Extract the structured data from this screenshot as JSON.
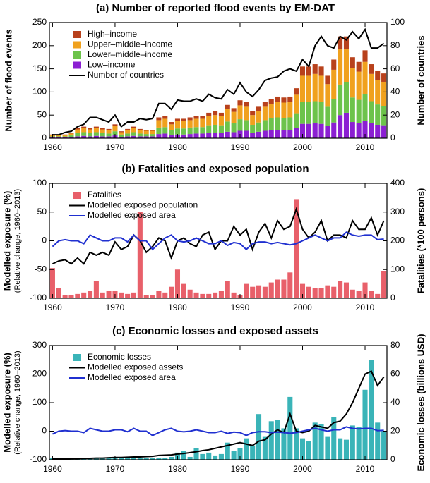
{
  "chart_data": [
    {
      "type": "bar",
      "title": "(a) Number of reported flood events by EM-DAT",
      "y_label": "Number of flood events",
      "y2_label": "Number of countries",
      "x": [
        1960,
        1961,
        1962,
        1963,
        1964,
        1965,
        1966,
        1967,
        1968,
        1969,
        1970,
        1971,
        1972,
        1973,
        1974,
        1975,
        1976,
        1977,
        1978,
        1979,
        1980,
        1981,
        1982,
        1983,
        1984,
        1985,
        1986,
        1987,
        1988,
        1989,
        1990,
        1991,
        1992,
        1993,
        1994,
        1995,
        1996,
        1997,
        1998,
        1999,
        2000,
        2001,
        2002,
        2003,
        2004,
        2005,
        2006,
        2007,
        2008,
        2009,
        2010,
        2011,
        2012,
        2013
      ],
      "xlim": [
        1959.5,
        2013.5
      ],
      "xticks": [
        1960,
        1970,
        1980,
        1990,
        2000,
        2010
      ],
      "ylim": [
        0,
        250
      ],
      "yticks": [
        0,
        50,
        100,
        150,
        200,
        250
      ],
      "y2lim": [
        0,
        100
      ],
      "y2ticks": [
        0,
        20,
        40,
        60,
        80,
        100
      ],
      "series": [
        {
          "name": "High–income",
          "type": "bar",
          "color": "#b8411c",
          "values": [
            1,
            1,
            1,
            2,
            3,
            3,
            3,
            3,
            3,
            3,
            4,
            2,
            3,
            3,
            3,
            2,
            2,
            6,
            6,
            5,
            5,
            5,
            6,
            6,
            6,
            7,
            8,
            7,
            9,
            8,
            11,
            10,
            8,
            9,
            10,
            11,
            12,
            11,
            12,
            14,
            20,
            20,
            21,
            20,
            18,
            22,
            28,
            28,
            23,
            21,
            25,
            21,
            19,
            18
          ]
        },
        {
          "name": "Upper–middle–income",
          "type": "bar",
          "color": "#f0a11e",
          "values": [
            3,
            3,
            3,
            4,
            8,
            9,
            8,
            9,
            8,
            7,
            11,
            5,
            7,
            9,
            7,
            7,
            7,
            16,
            18,
            12,
            16,
            16,
            16,
            18,
            18,
            20,
            21,
            20,
            27,
            24,
            30,
            29,
            21,
            25,
            29,
            31,
            33,
            33,
            33,
            40,
            57,
            57,
            59,
            57,
            49,
            63,
            76,
            71,
            64,
            61,
            70,
            59,
            53,
            52
          ]
        },
        {
          "name": "Lower–middle–income",
          "type": "bar",
          "color": "#6dc34b",
          "values": [
            2,
            2,
            2,
            4,
            7,
            8,
            7,
            8,
            7,
            6,
            9,
            5,
            6,
            8,
            6,
            5,
            5,
            14,
            14,
            11,
            13,
            13,
            14,
            14,
            14,
            17,
            17,
            17,
            22,
            20,
            25,
            23,
            17,
            20,
            23,
            26,
            27,
            26,
            27,
            32,
            47,
            47,
            48,
            47,
            41,
            51,
            66,
            66,
            53,
            50,
            57,
            48,
            44,
            42
          ]
        },
        {
          "name": "Low–income",
          "type": "bar",
          "color": "#8b1fd2",
          "values": [
            2,
            2,
            2,
            2,
            4,
            5,
            4,
            5,
            4,
            4,
            6,
            3,
            4,
            5,
            4,
            4,
            4,
            9,
            10,
            7,
            8,
            8,
            9,
            10,
            10,
            11,
            12,
            11,
            14,
            13,
            16,
            16,
            12,
            14,
            16,
            17,
            18,
            18,
            18,
            22,
            31,
            31,
            32,
            31,
            27,
            34,
            50,
            55,
            35,
            33,
            38,
            32,
            29,
            28
          ]
        },
        {
          "name": "Number of countries",
          "type": "line",
          "axis": "y2",
          "color": "#000000",
          "values": [
            3,
            3,
            5,
            6,
            10,
            12,
            18,
            18,
            16,
            14,
            20,
            10,
            14,
            14,
            17,
            16,
            17,
            30,
            30,
            25,
            33,
            32,
            32,
            34,
            32,
            38,
            35,
            34,
            42,
            38,
            48,
            40,
            36,
            42,
            50,
            52,
            53,
            58,
            60,
            58,
            68,
            62,
            80,
            88,
            80,
            78,
            88,
            85,
            92,
            86,
            94,
            78,
            78,
            82
          ]
        }
      ]
    },
    {
      "type": "bar",
      "title": "(b) Fatalities and exposed population",
      "y_label": "Modelled exposure (%)",
      "y_note": "(Relative change, 1960–2013)",
      "y2_label": "Fatalities (*100 persons)",
      "x": [
        1960,
        1961,
        1962,
        1963,
        1964,
        1965,
        1966,
        1967,
        1968,
        1969,
        1970,
        1971,
        1972,
        1973,
        1974,
        1975,
        1976,
        1977,
        1978,
        1979,
        1980,
        1981,
        1982,
        1983,
        1984,
        1985,
        1986,
        1987,
        1988,
        1989,
        1990,
        1991,
        1992,
        1993,
        1994,
        1995,
        1996,
        1997,
        1998,
        1999,
        2000,
        2001,
        2002,
        2003,
        2004,
        2005,
        2006,
        2007,
        2008,
        2009,
        2010,
        2011,
        2012,
        2013
      ],
      "xlim": [
        1959.5,
        2013.5
      ],
      "xticks": [
        1960,
        1970,
        1980,
        1990,
        2000,
        2010
      ],
      "ylim": [
        -100,
        100
      ],
      "yticks": [
        -100,
        -50,
        0,
        50,
        100
      ],
      "y2lim": [
        0,
        400
      ],
      "y2ticks": [
        0,
        100,
        200,
        300,
        400
      ],
      "series": [
        {
          "name": "Fatalities",
          "type": "bar",
          "axis": "y2",
          "color": "#e8606a",
          "values": [
            105,
            35,
            10,
            10,
            15,
            20,
            25,
            60,
            20,
            25,
            25,
            20,
            15,
            20,
            300,
            10,
            10,
            25,
            20,
            40,
            100,
            50,
            30,
            20,
            15,
            15,
            20,
            25,
            60,
            20,
            10,
            50,
            40,
            45,
            40,
            55,
            65,
            65,
            90,
            345,
            50,
            40,
            35,
            35,
            45,
            40,
            60,
            55,
            30,
            25,
            55,
            25,
            15,
            95
          ]
        },
        {
          "name": "Modelled exposed population",
          "type": "line",
          "color": "#000000",
          "values": [
            -40,
            -35,
            -33,
            -40,
            -30,
            -40,
            -20,
            -25,
            -20,
            -25,
            -2,
            -15,
            -10,
            10,
            0,
            -20,
            -10,
            5,
            0,
            -30,
            0,
            5,
            -5,
            -10,
            10,
            15,
            -15,
            0,
            0,
            25,
            10,
            20,
            -15,
            15,
            30,
            5,
            35,
            20,
            25,
            55,
            20,
            5,
            15,
            35,
            0,
            10,
            10,
            5,
            35,
            20,
            20,
            40,
            10,
            35
          ]
        },
        {
          "name": "Modelled exposed area",
          "type": "line",
          "color": "#2030d0",
          "values": [
            -10,
            0,
            2,
            0,
            0,
            -5,
            10,
            5,
            0,
            0,
            5,
            5,
            -2,
            10,
            0,
            0,
            -15,
            -5,
            5,
            10,
            0,
            -2,
            0,
            5,
            0,
            -5,
            -5,
            0,
            -8,
            -3,
            -5,
            -15,
            -5,
            -2,
            -2,
            -5,
            -3,
            -5,
            -7,
            -5,
            0,
            5,
            10,
            5,
            0,
            5,
            5,
            15,
            10,
            8,
            10,
            10,
            2,
            3
          ]
        }
      ]
    },
    {
      "type": "bar",
      "title": "(c) Economic losses and exposed assets",
      "y_label": "Modelled exposure (%)",
      "y_note": "(Relative change, 1960–2013)",
      "y2_label": "Economic losses (billions USD)",
      "x": [
        1960,
        1961,
        1962,
        1963,
        1964,
        1965,
        1966,
        1967,
        1968,
        1969,
        1970,
        1971,
        1972,
        1973,
        1974,
        1975,
        1976,
        1977,
        1978,
        1979,
        1980,
        1981,
        1982,
        1983,
        1984,
        1985,
        1986,
        1987,
        1988,
        1989,
        1990,
        1991,
        1992,
        1993,
        1994,
        1995,
        1996,
        1997,
        1998,
        1999,
        2000,
        2001,
        2002,
        2003,
        2004,
        2005,
        2006,
        2007,
        2008,
        2009,
        2010,
        2011,
        2012,
        2013
      ],
      "xlim": [
        1959.5,
        2013.5
      ],
      "xticks": [
        1960,
        1970,
        1980,
        1990,
        2000,
        2010
      ],
      "ylim": [
        -100,
        300
      ],
      "yticks": [
        -100,
        0,
        100,
        200,
        300
      ],
      "y2lim": [
        0,
        80
      ],
      "y2ticks": [
        0,
        20,
        40,
        60,
        80
      ],
      "series": [
        {
          "name": "Economic losses",
          "type": "bar",
          "axis": "y2",
          "color": "#3ab4b8",
          "values": [
            1,
            1,
            1,
            1,
            1,
            1,
            1,
            1,
            1,
            1,
            1,
            1,
            1,
            2,
            1,
            1,
            1,
            1,
            1,
            2,
            5,
            6,
            2,
            8,
            4,
            5,
            3,
            4,
            12,
            6,
            8,
            15,
            10,
            32,
            16,
            27,
            28,
            22,
            44,
            22,
            15,
            13,
            26,
            25,
            16,
            30,
            15,
            14,
            24,
            23,
            49,
            70,
            26,
            20
          ]
        },
        {
          "name": "Modelled exposed assets",
          "type": "line",
          "color": "#000000",
          "values": [
            -97,
            -97,
            -97,
            -96,
            -96,
            -95,
            -95,
            -94,
            -94,
            -93,
            -92,
            -92,
            -91,
            -90,
            -90,
            -89,
            -88,
            -85,
            -84,
            -83,
            -80,
            -78,
            -75,
            -72,
            -68,
            -65,
            -60,
            -55,
            -50,
            -45,
            -40,
            -45,
            -50,
            -35,
            -30,
            -10,
            5,
            -5,
            60,
            0,
            -5,
            0,
            20,
            15,
            10,
            30,
            35,
            60,
            100,
            150,
            200,
            210,
            160,
            190
          ]
        },
        {
          "name": "Modelled exposed area",
          "type": "line",
          "color": "#2030d0",
          "values": [
            -10,
            0,
            2,
            0,
            0,
            -5,
            10,
            5,
            0,
            0,
            5,
            5,
            -2,
            10,
            0,
            0,
            -15,
            -5,
            5,
            10,
            0,
            -2,
            0,
            5,
            0,
            -5,
            -5,
            0,
            -8,
            -3,
            -5,
            -15,
            -5,
            -2,
            -2,
            -5,
            -3,
            -5,
            -7,
            -5,
            0,
            5,
            10,
            5,
            0,
            5,
            5,
            15,
            10,
            8,
            10,
            10,
            2,
            3
          ]
        }
      ]
    }
  ]
}
